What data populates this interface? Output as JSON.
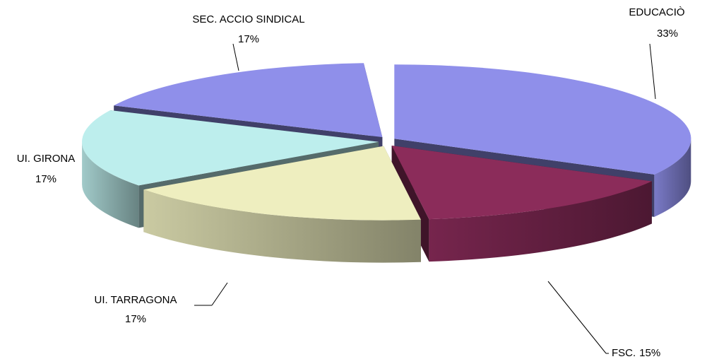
{
  "chart_data": {
    "type": "pie3d",
    "categories": [
      "EDUCACIÒ",
      "FSC.",
      "UI. TARRAGONA",
      "UI. GIRONA",
      "SEC. ACCIO SINDICAL"
    ],
    "values": [
      33,
      15,
      17,
      17,
      17
    ],
    "value_labels": [
      "33%",
      "15%",
      "17%",
      "17%",
      "17%"
    ],
    "colors": [
      "#8f8fea",
      "#8b2c5a",
      "#eeeebf",
      "#bdeeed",
      "#8f8fea"
    ]
  }
}
